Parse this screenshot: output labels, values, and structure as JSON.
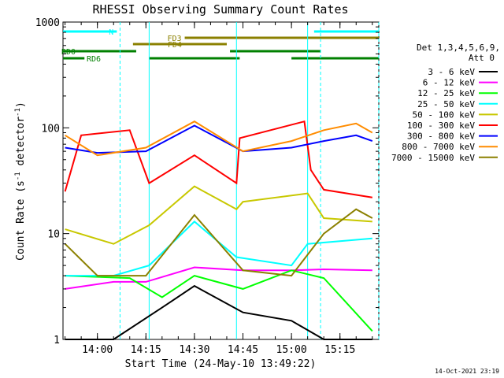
{
  "chart_data": {
    "type": "line",
    "title": "RHESSI Observing Summary Count Rates",
    "xlabel": "Start Time (24-May-10 13:49:22)",
    "ylabel_main": "Count Rate (s",
    "ylabel_sup1": "-1",
    "ylabel_mid": " detector",
    "ylabel_sup2": "-1",
    "ylabel_end": ")",
    "y_scale": "log",
    "ylim": [
      1,
      1000
    ],
    "xlim": [
      "13:49:22",
      "15:27:00"
    ],
    "x_ticks": [
      "14:00",
      "14:15",
      "14:30",
      "14:45",
      "15:00",
      "15:15"
    ],
    "y_ticks": [
      "1",
      "10",
      "100",
      "1000"
    ],
    "timestamp": "14-Oct-2021 23:19",
    "legend": {
      "header": "Det 1,3,4,5,6,9,",
      "header2": "Att 0",
      "placement": "right"
    },
    "flags": [
      {
        "label": "N",
        "color": "#00ffff",
        "segments": [
          [
            "13:49:22",
            "14:06:00"
          ],
          [
            "15:07:00",
            "15:27:00"
          ]
        ]
      },
      {
        "label": "FD3",
        "color": "#8b8000",
        "segments": [
          [
            "14:27:00",
            "15:27:00"
          ]
        ]
      },
      {
        "label": "FD4",
        "color": "#8b8000",
        "segments": [
          [
            "14:11:00",
            "14:40:00"
          ]
        ]
      },
      {
        "label": "RD0",
        "color": "#008000",
        "segments": [
          [
            "13:49:22",
            "14:12:00"
          ],
          [
            "14:41:00",
            "15:09:00"
          ]
        ]
      },
      {
        "label": "RD6",
        "color": "#008000",
        "segments": [
          [
            "13:49:22",
            "13:56:00"
          ],
          [
            "14:16:00",
            "14:44:00"
          ],
          [
            "15:00:00",
            "15:27:00"
          ]
        ]
      }
    ],
    "vlines": [
      {
        "t": "14:07:00",
        "style": "dashed"
      },
      {
        "t": "14:16:00",
        "style": "solid"
      },
      {
        "t": "14:43:00",
        "style": "solid"
      },
      {
        "t": "15:05:00",
        "style": "solid"
      },
      {
        "t": "15:09:00",
        "style": "dashed"
      },
      {
        "t": "15:27:00",
        "style": "dashed"
      }
    ],
    "series": [
      {
        "name": "3 - 6 keV",
        "color": "#000000",
        "x": [
          "13:50",
          "14:05",
          "14:20",
          "14:30",
          "14:45",
          "15:00",
          "15:10",
          "15:25"
        ],
        "y": [
          1.0,
          1.0,
          2.0,
          3.2,
          1.8,
          1.5,
          1.0,
          1.0
        ]
      },
      {
        "name": "6 - 12 keV",
        "color": "#ff00ff",
        "x": [
          "13:50",
          "14:05",
          "14:15",
          "14:30",
          "14:45",
          "15:00",
          "15:10",
          "15:25"
        ],
        "y": [
          3.0,
          3.5,
          3.5,
          4.8,
          4.5,
          4.5,
          4.6,
          4.5
        ]
      },
      {
        "name": "12 - 25 keV",
        "color": "#00ff00",
        "x": [
          "13:50",
          "14:10",
          "14:20",
          "14:30",
          "14:45",
          "15:00",
          "15:10",
          "15:25"
        ],
        "y": [
          4.0,
          3.8,
          2.5,
          4.0,
          3.0,
          4.5,
          3.8,
          1.2
        ]
      },
      {
        "name": "25 - 50 keV",
        "color": "#00ffff",
        "x": [
          "13:50",
          "14:05",
          "14:16",
          "14:30",
          "14:43",
          "15:00",
          "15:05",
          "15:25"
        ],
        "y": [
          4.0,
          4.0,
          5.0,
          13.0,
          6.0,
          5.0,
          8.0,
          9.0
        ]
      },
      {
        "name": "50 - 100 keV",
        "color": "#c8c800",
        "x": [
          "13:50",
          "14:05",
          "14:16",
          "14:30",
          "14:43",
          "14:45",
          "15:05",
          "15:10",
          "15:25"
        ],
        "y": [
          11.0,
          8.0,
          12.0,
          28.0,
          17.0,
          20.0,
          24.0,
          14.0,
          13.0
        ]
      },
      {
        "name": "100 - 300 keV",
        "color": "#ff0000",
        "x": [
          "13:50",
          "13:55",
          "14:10",
          "14:16",
          "14:30",
          "14:43",
          "14:44",
          "15:04",
          "15:06",
          "15:10",
          "15:25"
        ],
        "y": [
          25.0,
          85.0,
          95.0,
          30.0,
          55.0,
          30.0,
          80.0,
          115.0,
          40.0,
          26.0,
          22.0
        ]
      },
      {
        "name": "300 - 800 keV",
        "color": "#0000ff",
        "x": [
          "13:50",
          "14:00",
          "14:15",
          "14:30",
          "14:45",
          "15:00",
          "15:10",
          "15:20",
          "15:25"
        ],
        "y": [
          65.0,
          58.0,
          60.0,
          105.0,
          60.0,
          65.0,
          75.0,
          85.0,
          75.0
        ]
      },
      {
        "name": "800 - 7000 keV",
        "color": "#ff8c00",
        "x": [
          "13:50",
          "14:00",
          "14:15",
          "14:30",
          "14:45",
          "15:00",
          "15:10",
          "15:20",
          "15:25"
        ],
        "y": [
          85.0,
          55.0,
          65.0,
          115.0,
          60.0,
          75.0,
          95.0,
          110.0,
          90.0
        ]
      },
      {
        "name": "7000 - 15000 keV",
        "color": "#8b8000",
        "x": [
          "13:50",
          "14:00",
          "14:15",
          "14:30",
          "14:45",
          "15:00",
          "15:10",
          "15:20",
          "15:25"
        ],
        "y": [
          8.0,
          4.0,
          4.0,
          15.0,
          4.5,
          4.0,
          10.0,
          17.0,
          14.0
        ]
      }
    ]
  }
}
